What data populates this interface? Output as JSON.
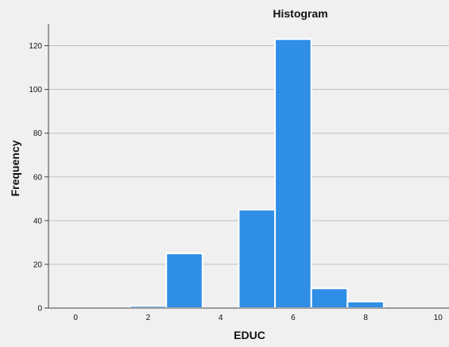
{
  "chart_data": {
    "type": "bar",
    "title": "Histogram",
    "xlabel": "EDUC",
    "ylabel": "Frequency",
    "bin_width": 1,
    "x_ticks": [
      0,
      2,
      4,
      6,
      8,
      10
    ],
    "y_ticks": [
      0,
      20,
      40,
      60,
      80,
      100,
      120
    ],
    "xlim": [
      -0.75,
      10.3
    ],
    "ylim": [
      0,
      130
    ],
    "grid": true,
    "legend": "none",
    "bins": [
      {
        "center": 2,
        "value": 1
      },
      {
        "center": 3,
        "value": 25
      },
      {
        "center": 5,
        "value": 45
      },
      {
        "center": 6,
        "value": 123
      },
      {
        "center": 7,
        "value": 9
      },
      {
        "center": 8,
        "value": 3
      }
    ]
  },
  "colors": {
    "background": "#f0f0f0",
    "bar_fill": "#2f8ee6",
    "bar_stroke": "#ffffff",
    "grid": "#bfbfbf",
    "axis": "#444444"
  }
}
